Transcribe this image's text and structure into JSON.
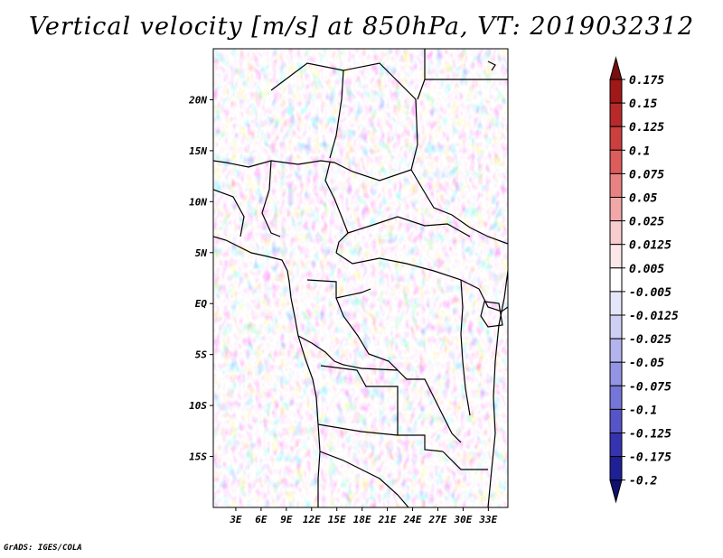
{
  "title": "Vertical velocity [m/s] at 850hPa, VT: 2019032312",
  "credit": "GrADS: IGES/COLA",
  "map": {
    "lat_labels": [
      "20N",
      "15N",
      "10N",
      "5N",
      "EQ",
      "5S",
      "10S",
      "15S"
    ],
    "lat_values": [
      20,
      15,
      10,
      5,
      0,
      -5,
      -10,
      -15
    ],
    "lon_labels": [
      "3E",
      "6E",
      "9E",
      "12E",
      "15E",
      "18E",
      "21E",
      "24E",
      "27E",
      "30E",
      "33E"
    ],
    "lon_values": [
      3,
      6,
      9,
      12,
      15,
      18,
      21,
      24,
      27,
      30,
      33
    ],
    "lon_range": [
      0,
      35
    ],
    "lat_range": [
      -20,
      25
    ]
  },
  "colorbar": {
    "labels": [
      "0.175",
      "0.15",
      "0.125",
      "0.1",
      "0.075",
      "0.05",
      "0.025",
      "0.0125",
      "0.005",
      "-0.005",
      "-0.0125",
      "-0.025",
      "-0.05",
      "-0.075",
      "-0.1",
      "-0.125",
      "-0.175",
      "-0.2"
    ],
    "colors": [
      "#7a0e0e",
      "#a01818",
      "#b82a2a",
      "#cc3f3f",
      "#dd5c5c",
      "#e98282",
      "#f2a8a8",
      "#f8cdcd",
      "#fce8e8",
      "#ffffff",
      "#e6e6fa",
      "#cfcff4",
      "#b3b3ee",
      "#9494e4",
      "#7676d8",
      "#5555c8",
      "#3434b0",
      "#1f1f96",
      "#101070"
    ],
    "top_arrow_color": "#7a0e0e",
    "bottom_arrow_color": "#101070"
  }
}
